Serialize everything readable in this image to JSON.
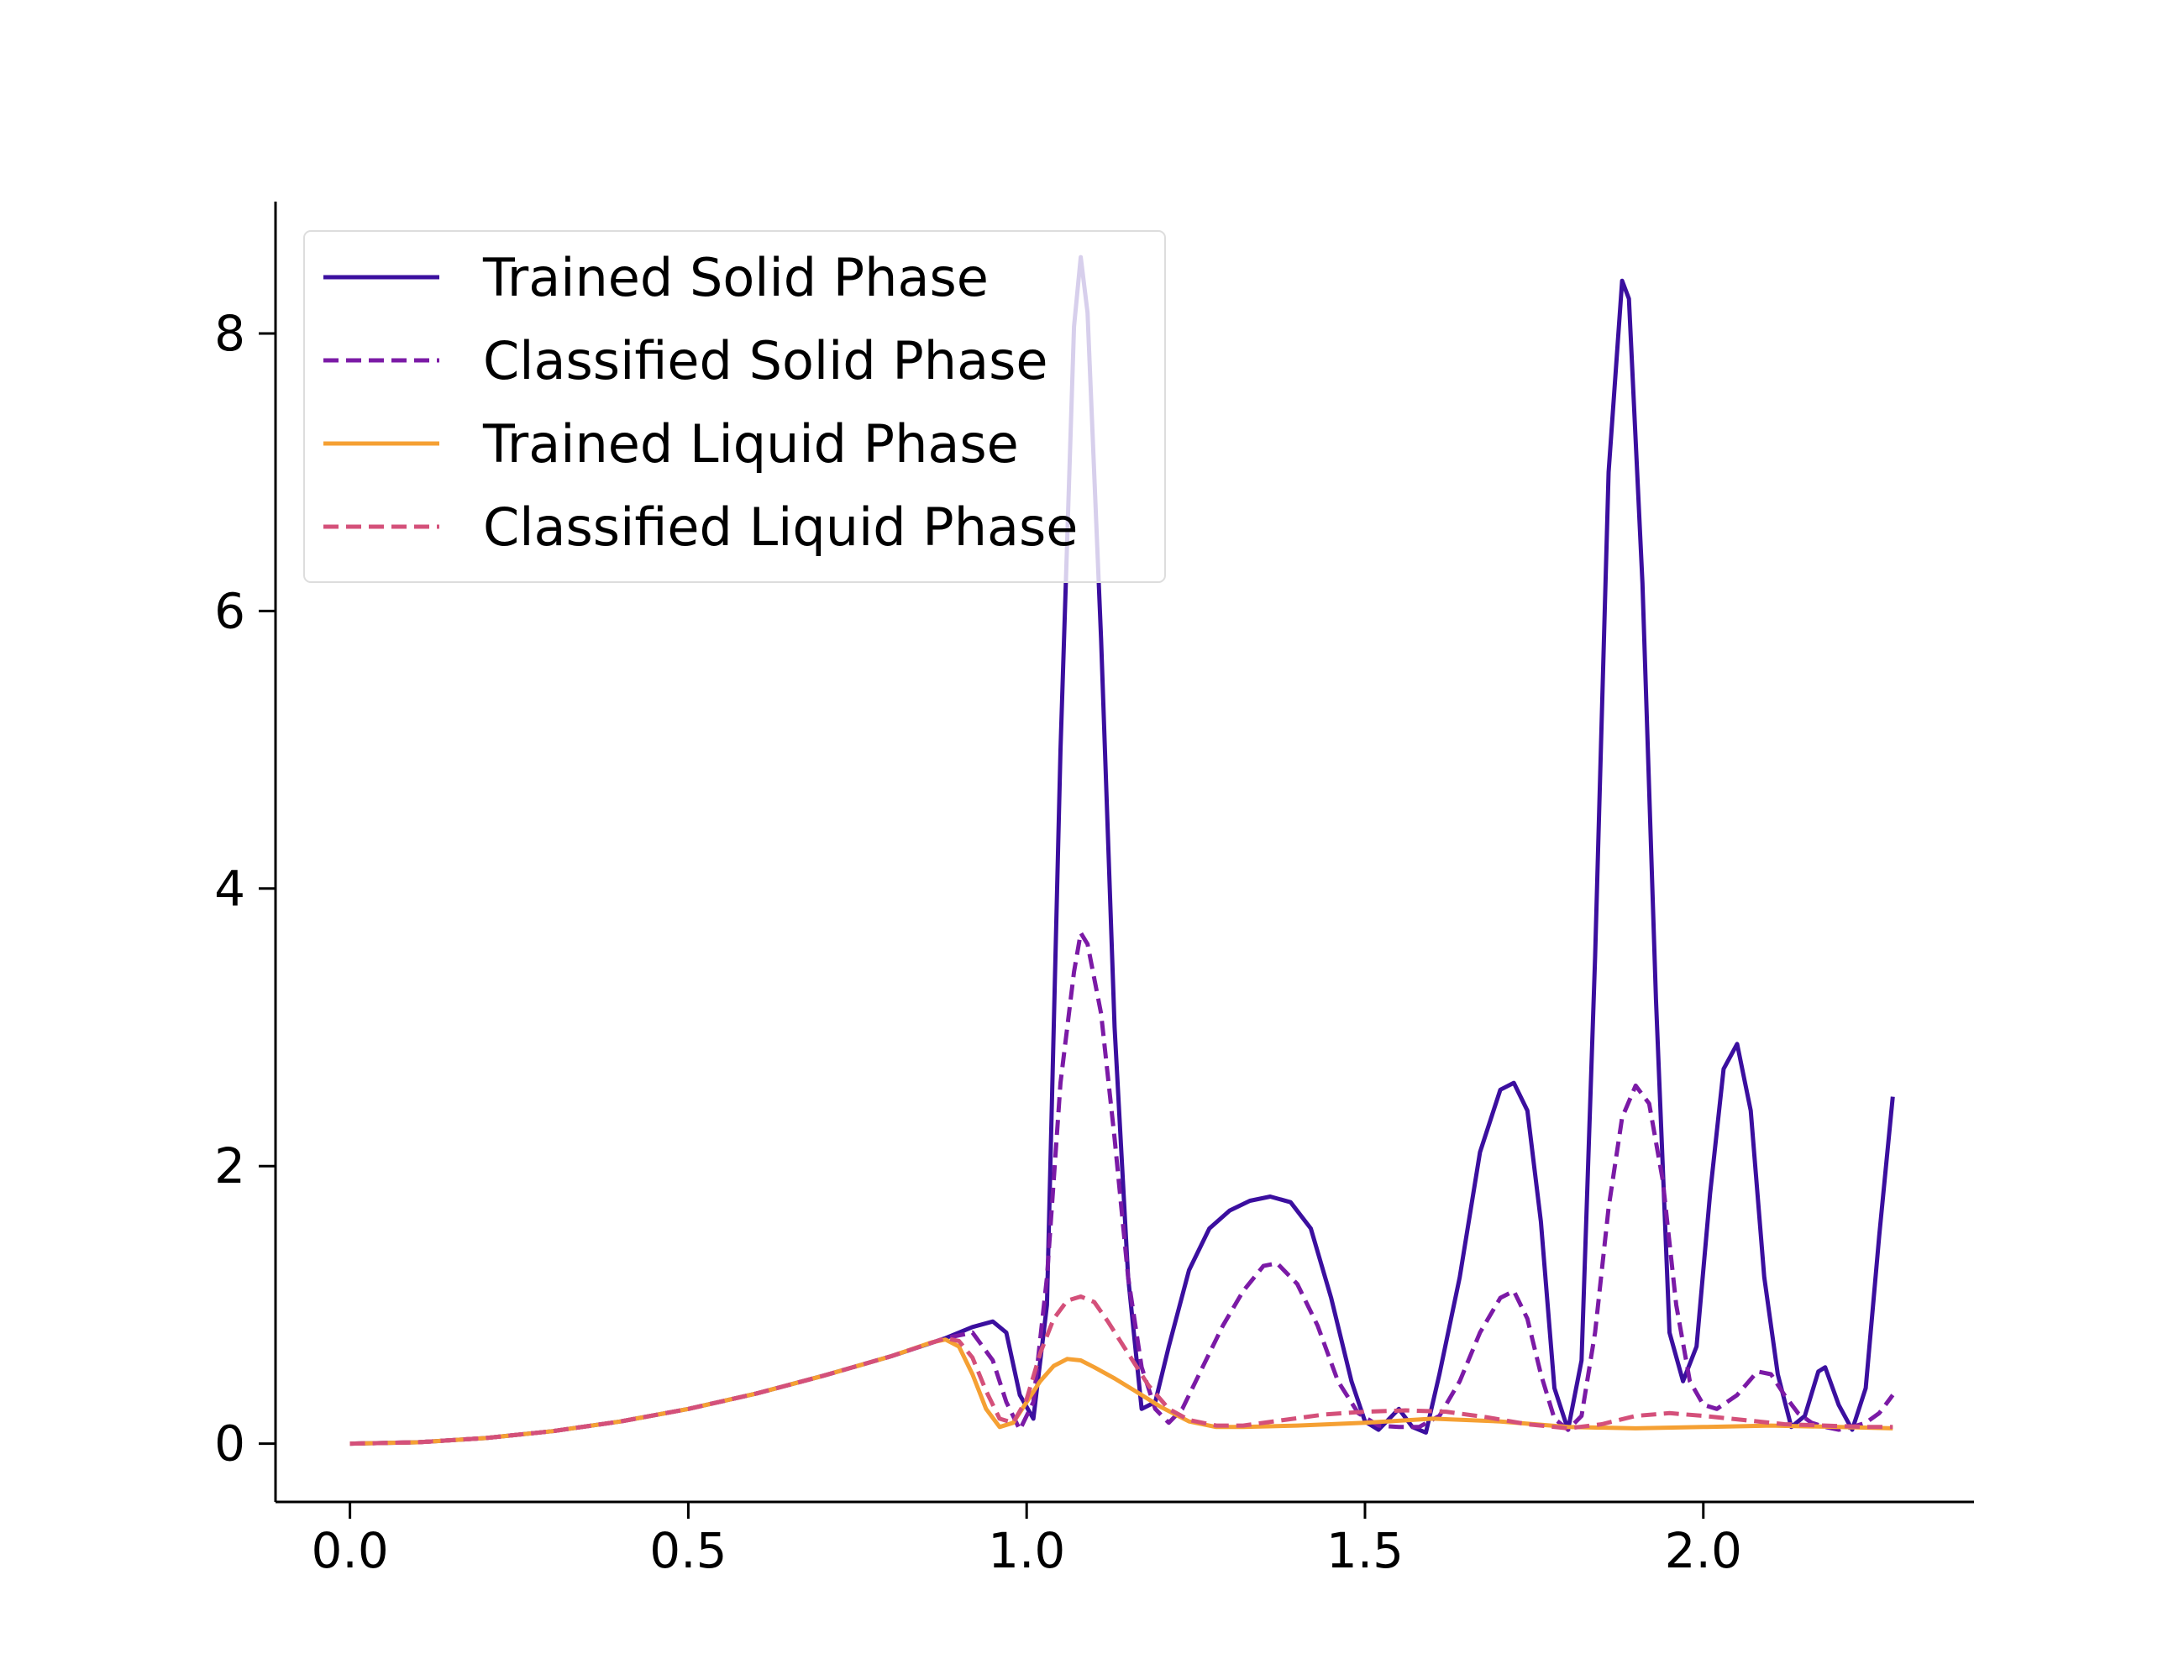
{
  "chart_data": {
    "type": "line",
    "title": "",
    "xlabel": "",
    "ylabel": "",
    "xlim": [
      -0.11,
      2.4
    ],
    "ylim": [
      -0.42,
      8.95
    ],
    "xticks": [
      0.0,
      0.5,
      1.0,
      1.5,
      2.0
    ],
    "xtick_labels": [
      "0.0",
      "0.5",
      "1.0",
      "1.5",
      "2.0"
    ],
    "yticks": [
      0,
      2,
      4,
      6,
      8
    ],
    "ytick_labels": [
      "0",
      "2",
      "4",
      "6",
      "8"
    ],
    "grid": false,
    "legend_position": "top-left",
    "series": [
      {
        "name": "Trained Solid Phase",
        "color": "#3b0f9f",
        "dash": "solid",
        "points": [
          [
            0,
            0
          ],
          [
            0.1,
            0.01
          ],
          [
            0.2,
            0.04
          ],
          [
            0.3,
            0.09
          ],
          [
            0.4,
            0.16
          ],
          [
            0.5,
            0.25
          ],
          [
            0.6,
            0.36
          ],
          [
            0.7,
            0.49
          ],
          [
            0.8,
            0.63
          ],
          [
            0.88,
            0.76
          ],
          [
            0.92,
            0.84
          ],
          [
            0.95,
            0.88
          ],
          [
            0.97,
            0.8
          ],
          [
            0.99,
            0.35
          ],
          [
            1.01,
            0.18
          ],
          [
            1.03,
            1.0
          ],
          [
            1.05,
            5.0
          ],
          [
            1.07,
            8.05
          ],
          [
            1.08,
            8.55
          ],
          [
            1.09,
            8.15
          ],
          [
            1.11,
            5.8
          ],
          [
            1.13,
            3.0
          ],
          [
            1.15,
            1.2
          ],
          [
            1.17,
            0.25
          ],
          [
            1.19,
            0.3
          ],
          [
            1.21,
            0.7
          ],
          [
            1.24,
            1.25
          ],
          [
            1.27,
            1.55
          ],
          [
            1.3,
            1.68
          ],
          [
            1.33,
            1.75
          ],
          [
            1.36,
            1.78
          ],
          [
            1.39,
            1.74
          ],
          [
            1.42,
            1.55
          ],
          [
            1.45,
            1.05
          ],
          [
            1.48,
            0.45
          ],
          [
            1.5,
            0.16
          ],
          [
            1.52,
            0.1
          ],
          [
            1.55,
            0.25
          ],
          [
            1.57,
            0.12
          ],
          [
            1.59,
            0.08
          ],
          [
            1.61,
            0.5
          ],
          [
            1.64,
            1.2
          ],
          [
            1.67,
            2.1
          ],
          [
            1.7,
            2.55
          ],
          [
            1.72,
            2.6
          ],
          [
            1.74,
            2.4
          ],
          [
            1.76,
            1.6
          ],
          [
            1.78,
            0.4
          ],
          [
            1.8,
            0.1
          ],
          [
            1.82,
            0.6
          ],
          [
            1.84,
            3.5
          ],
          [
            1.86,
            7.0
          ],
          [
            1.88,
            8.38
          ],
          [
            1.89,
            8.25
          ],
          [
            1.91,
            6.2
          ],
          [
            1.93,
            3.2
          ],
          [
            1.95,
            0.8
          ],
          [
            1.97,
            0.45
          ],
          [
            1.99,
            0.7
          ],
          [
            2.01,
            1.8
          ],
          [
            2.03,
            2.7
          ],
          [
            2.05,
            2.88
          ],
          [
            2.07,
            2.4
          ],
          [
            2.09,
            1.2
          ],
          [
            2.11,
            0.5
          ],
          [
            2.13,
            0.12
          ],
          [
            2.15,
            0.2
          ],
          [
            2.17,
            0.52
          ],
          [
            2.18,
            0.55
          ],
          [
            2.2,
            0.28
          ],
          [
            2.22,
            0.1
          ],
          [
            2.24,
            0.4
          ],
          [
            2.26,
            1.5
          ],
          [
            2.28,
            2.5
          ]
        ]
      },
      {
        "name": "Classified Solid Phase",
        "color": "#7b1aa6",
        "dash": "dashed",
        "points": [
          [
            0,
            0
          ],
          [
            0.1,
            0.01
          ],
          [
            0.2,
            0.04
          ],
          [
            0.3,
            0.09
          ],
          [
            0.4,
            0.16
          ],
          [
            0.5,
            0.25
          ],
          [
            0.6,
            0.36
          ],
          [
            0.7,
            0.49
          ],
          [
            0.8,
            0.63
          ],
          [
            0.88,
            0.76
          ],
          [
            0.92,
            0.8
          ],
          [
            0.95,
            0.6
          ],
          [
            0.97,
            0.3
          ],
          [
            0.99,
            0.1
          ],
          [
            1.01,
            0.3
          ],
          [
            1.03,
            1.2
          ],
          [
            1.05,
            2.6
          ],
          [
            1.07,
            3.4
          ],
          [
            1.08,
            3.68
          ],
          [
            1.09,
            3.6
          ],
          [
            1.11,
            3.1
          ],
          [
            1.13,
            2.2
          ],
          [
            1.15,
            1.2
          ],
          [
            1.17,
            0.55
          ],
          [
            1.19,
            0.25
          ],
          [
            1.21,
            0.15
          ],
          [
            1.23,
            0.25
          ],
          [
            1.26,
            0.55
          ],
          [
            1.29,
            0.85
          ],
          [
            1.32,
            1.1
          ],
          [
            1.35,
            1.28
          ],
          [
            1.37,
            1.3
          ],
          [
            1.4,
            1.15
          ],
          [
            1.43,
            0.85
          ],
          [
            1.46,
            0.45
          ],
          [
            1.49,
            0.22
          ],
          [
            1.52,
            0.13
          ],
          [
            1.55,
            0.12
          ],
          [
            1.58,
            0.12
          ],
          [
            1.61,
            0.2
          ],
          [
            1.64,
            0.45
          ],
          [
            1.67,
            0.8
          ],
          [
            1.7,
            1.05
          ],
          [
            1.72,
            1.1
          ],
          [
            1.74,
            0.9
          ],
          [
            1.76,
            0.5
          ],
          [
            1.78,
            0.18
          ],
          [
            1.8,
            0.1
          ],
          [
            1.82,
            0.2
          ],
          [
            1.84,
            0.8
          ],
          [
            1.86,
            1.7
          ],
          [
            1.88,
            2.35
          ],
          [
            1.9,
            2.58
          ],
          [
            1.92,
            2.45
          ],
          [
            1.94,
            1.9
          ],
          [
            1.96,
            1.0
          ],
          [
            1.98,
            0.45
          ],
          [
            2.0,
            0.28
          ],
          [
            2.02,
            0.25
          ],
          [
            2.05,
            0.35
          ],
          [
            2.08,
            0.52
          ],
          [
            2.1,
            0.5
          ],
          [
            2.12,
            0.35
          ],
          [
            2.14,
            0.22
          ],
          [
            2.16,
            0.15
          ],
          [
            2.18,
            0.12
          ],
          [
            2.2,
            0.1
          ],
          [
            2.22,
            0.12
          ],
          [
            2.24,
            0.15
          ],
          [
            2.26,
            0.22
          ],
          [
            2.28,
            0.35
          ]
        ]
      },
      {
        "name": "Trained Liquid Phase",
        "color": "#f5a033",
        "dash": "solid",
        "points": [
          [
            0,
            0
          ],
          [
            0.1,
            0.01
          ],
          [
            0.2,
            0.04
          ],
          [
            0.3,
            0.09
          ],
          [
            0.4,
            0.16
          ],
          [
            0.5,
            0.25
          ],
          [
            0.6,
            0.36
          ],
          [
            0.7,
            0.49
          ],
          [
            0.8,
            0.63
          ],
          [
            0.86,
            0.73
          ],
          [
            0.88,
            0.75
          ],
          [
            0.9,
            0.7
          ],
          [
            0.92,
            0.5
          ],
          [
            0.94,
            0.25
          ],
          [
            0.96,
            0.12
          ],
          [
            0.98,
            0.15
          ],
          [
            1.0,
            0.3
          ],
          [
            1.02,
            0.45
          ],
          [
            1.04,
            0.56
          ],
          [
            1.06,
            0.61
          ],
          [
            1.08,
            0.6
          ],
          [
            1.1,
            0.55
          ],
          [
            1.13,
            0.47
          ],
          [
            1.16,
            0.38
          ],
          [
            1.2,
            0.26
          ],
          [
            1.24,
            0.16
          ],
          [
            1.28,
            0.12
          ],
          [
            1.32,
            0.12
          ],
          [
            1.4,
            0.13
          ],
          [
            1.5,
            0.15
          ],
          [
            1.6,
            0.18
          ],
          [
            1.7,
            0.16
          ],
          [
            1.8,
            0.12
          ],
          [
            1.9,
            0.11
          ],
          [
            2.0,
            0.12
          ],
          [
            2.1,
            0.13
          ],
          [
            2.2,
            0.12
          ],
          [
            2.28,
            0.11
          ]
        ]
      },
      {
        "name": "Classified Liquid Phase",
        "color": "#d4507a",
        "dash": "dashed",
        "points": [
          [
            0,
            0
          ],
          [
            0.1,
            0.01
          ],
          [
            0.2,
            0.04
          ],
          [
            0.3,
            0.09
          ],
          [
            0.4,
            0.16
          ],
          [
            0.5,
            0.25
          ],
          [
            0.6,
            0.36
          ],
          [
            0.7,
            0.49
          ],
          [
            0.8,
            0.63
          ],
          [
            0.88,
            0.76
          ],
          [
            0.9,
            0.74
          ],
          [
            0.92,
            0.62
          ],
          [
            0.94,
            0.38
          ],
          [
            0.96,
            0.18
          ],
          [
            0.98,
            0.15
          ],
          [
            1.0,
            0.32
          ],
          [
            1.02,
            0.65
          ],
          [
            1.04,
            0.9
          ],
          [
            1.06,
            1.03
          ],
          [
            1.08,
            1.06
          ],
          [
            1.1,
            1.02
          ],
          [
            1.12,
            0.88
          ],
          [
            1.15,
            0.65
          ],
          [
            1.18,
            0.42
          ],
          [
            1.21,
            0.25
          ],
          [
            1.24,
            0.17
          ],
          [
            1.28,
            0.13
          ],
          [
            1.32,
            0.13
          ],
          [
            1.38,
            0.17
          ],
          [
            1.44,
            0.21
          ],
          [
            1.5,
            0.23
          ],
          [
            1.56,
            0.24
          ],
          [
            1.62,
            0.23
          ],
          [
            1.68,
            0.19
          ],
          [
            1.74,
            0.14
          ],
          [
            1.8,
            0.11
          ],
          [
            1.85,
            0.14
          ],
          [
            1.9,
            0.2
          ],
          [
            1.95,
            0.22
          ],
          [
            2.0,
            0.2
          ],
          [
            2.06,
            0.17
          ],
          [
            2.12,
            0.14
          ],
          [
            2.18,
            0.13
          ],
          [
            2.24,
            0.12
          ],
          [
            2.28,
            0.12
          ]
        ]
      }
    ]
  }
}
